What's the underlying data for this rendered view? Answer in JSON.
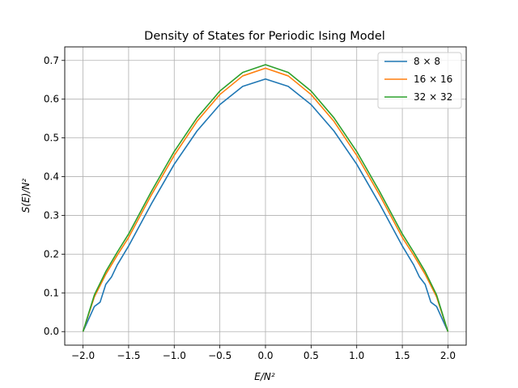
{
  "chart_data": {
    "type": "line",
    "title": "Density of States for Periodic Ising Model",
    "xlabel": "E/N²",
    "ylabel": "S(E)/N²",
    "xlim": [
      -2.2,
      2.2
    ],
    "ylim": [
      -0.035,
      0.735
    ],
    "xticks": [
      -2.0,
      -1.5,
      -1.0,
      -0.5,
      0.0,
      0.5,
      1.0,
      1.5,
      2.0
    ],
    "xtick_labels": [
      "−2.0",
      "−1.5",
      "−1.0",
      "−0.5",
      "0.0",
      "0.5",
      "1.0",
      "1.5",
      "2.0"
    ],
    "yticks": [
      0.0,
      0.1,
      0.2,
      0.3,
      0.4,
      0.5,
      0.6,
      0.7
    ],
    "ytick_labels": [
      "0.0",
      "0.1",
      "0.2",
      "0.3",
      "0.4",
      "0.5",
      "0.6",
      "0.7"
    ],
    "grid": true,
    "legend_position": "top-right",
    "series": [
      {
        "name": "8 × 8",
        "color": "#1f77b4",
        "x": [
          -2.0,
          -1.875,
          -1.8125,
          -1.75,
          -1.6875,
          -1.625,
          -1.5,
          -1.25,
          -1.0,
          -0.75,
          -0.5,
          -0.25,
          0.0,
          0.25,
          0.5,
          0.75,
          1.0,
          1.25,
          1.5,
          1.625,
          1.6875,
          1.75,
          1.8125,
          1.875,
          2.0
        ],
        "y": [
          0.0,
          0.065,
          0.076,
          0.122,
          0.141,
          0.172,
          0.221,
          0.33,
          0.432,
          0.518,
          0.586,
          0.633,
          0.652,
          0.633,
          0.586,
          0.518,
          0.432,
          0.33,
          0.221,
          0.172,
          0.141,
          0.122,
          0.076,
          0.065,
          0.0
        ]
      },
      {
        "name": "16 × 16",
        "color": "#ff7f0e",
        "x": [
          -2.0,
          -1.875,
          -1.75,
          -1.625,
          -1.5,
          -1.25,
          -1.0,
          -0.75,
          -0.5,
          -0.25,
          0.0,
          0.25,
          0.5,
          0.75,
          1.0,
          1.25,
          1.5,
          1.625,
          1.75,
          1.875,
          2.0
        ],
        "y": [
          0.0,
          0.09,
          0.148,
          0.197,
          0.243,
          0.353,
          0.455,
          0.543,
          0.612,
          0.66,
          0.68,
          0.66,
          0.612,
          0.543,
          0.455,
          0.353,
          0.243,
          0.197,
          0.148,
          0.09,
          0.0
        ]
      },
      {
        "name": "32 × 32",
        "color": "#2ca02c",
        "x": [
          -2.0,
          -1.875,
          -1.75,
          -1.625,
          -1.5,
          -1.25,
          -1.0,
          -0.75,
          -0.5,
          -0.25,
          0.0,
          0.25,
          0.5,
          0.75,
          1.0,
          1.25,
          1.5,
          1.625,
          1.75,
          1.875,
          2.0
        ],
        "y": [
          0.0,
          0.095,
          0.155,
          0.205,
          0.252,
          0.362,
          0.465,
          0.552,
          0.621,
          0.669,
          0.689,
          0.669,
          0.621,
          0.552,
          0.465,
          0.362,
          0.252,
          0.205,
          0.155,
          0.095,
          0.0
        ]
      }
    ]
  }
}
